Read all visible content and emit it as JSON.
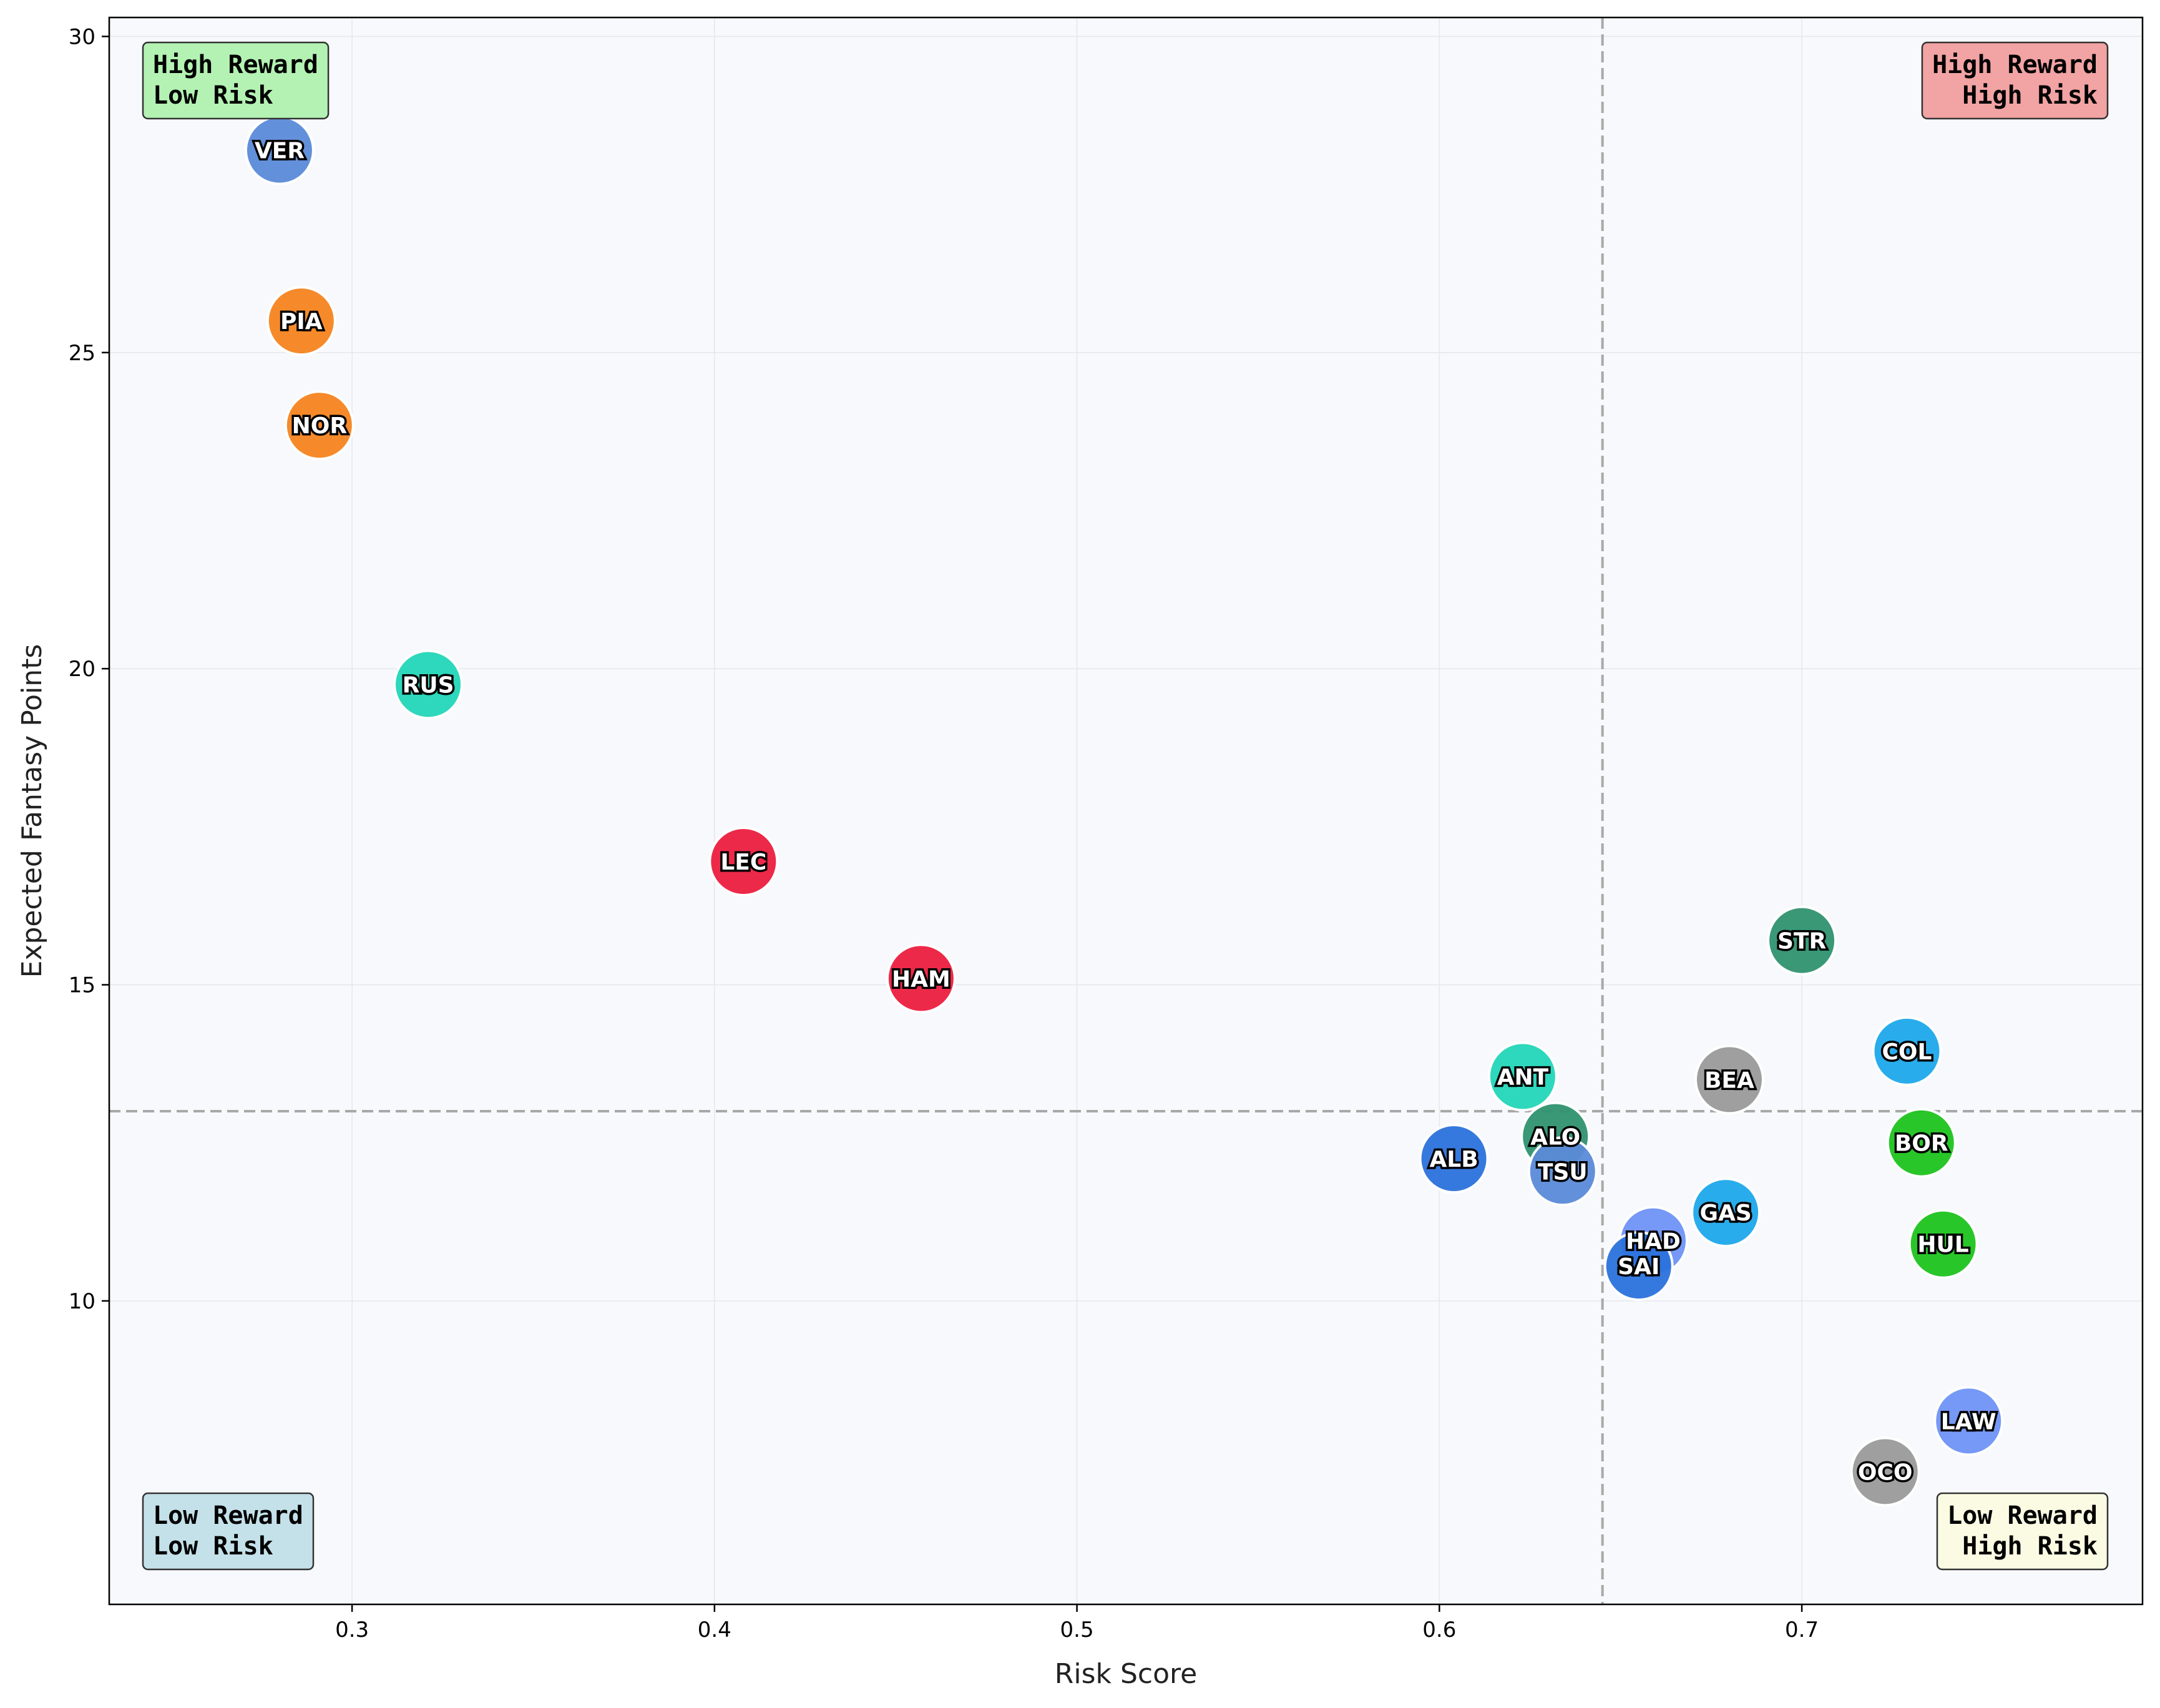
{
  "chart_data": {
    "type": "scatter",
    "xlabel": "Risk Score",
    "ylabel": "Expected Fantasy Points",
    "xlim": [
      0.233,
      0.794
    ],
    "ylim": [
      5.2,
      30.3
    ],
    "xticks": [
      0.3,
      0.4,
      0.5,
      0.6,
      0.7
    ],
    "yticks": [
      10,
      15,
      20,
      25,
      30
    ],
    "grid": true,
    "reference_lines": {
      "x": 0.645,
      "y": 13.0
    },
    "quadrants": [
      {
        "lines": [
          "High Reward",
          "Low Risk"
        ],
        "position": "top-left",
        "color": "#b3f2b3"
      },
      {
        "lines": [
          "High Reward",
          "High Risk"
        ],
        "position": "top-right",
        "color": "#f2a3a3"
      },
      {
        "lines": [
          "Low Reward",
          "Low Risk"
        ],
        "position": "bottom-left",
        "color": "#c4e1ea"
      },
      {
        "lines": [
          "Low Reward",
          "High Risk"
        ],
        "position": "bottom-right",
        "color": "#fbfbe3"
      }
    ],
    "points": [
      {
        "label": "VER",
        "x": 0.28,
        "y": 28.2,
        "color": "#5b8ad8"
      },
      {
        "label": "PIA",
        "x": 0.286,
        "y": 25.5,
        "color": "#f5841f"
      },
      {
        "label": "NOR",
        "x": 0.291,
        "y": 23.85,
        "color": "#f5841f"
      },
      {
        "label": "RUS",
        "x": 0.321,
        "y": 19.75,
        "color": "#22d6b8"
      },
      {
        "label": "LEC",
        "x": 0.408,
        "y": 16.95,
        "color": "#ec1e3f"
      },
      {
        "label": "HAM",
        "x": 0.457,
        "y": 15.1,
        "color": "#ec1e3f"
      },
      {
        "label": "ANT",
        "x": 0.623,
        "y": 13.55,
        "color": "#22d6b8"
      },
      {
        "label": "ALB",
        "x": 0.604,
        "y": 12.25,
        "color": "#2b72dc"
      },
      {
        "label": "ALO",
        "x": 0.632,
        "y": 12.6,
        "color": "#2f9270"
      },
      {
        "label": "TSU",
        "x": 0.634,
        "y": 12.05,
        "color": "#5b8ad8"
      },
      {
        "label": "STR",
        "x": 0.7,
        "y": 15.7,
        "color": "#2f9270"
      },
      {
        "label": "BEA",
        "x": 0.68,
        "y": 13.5,
        "color": "#9a9a9a"
      },
      {
        "label": "COL",
        "x": 0.729,
        "y": 13.95,
        "color": "#1ea8eb"
      },
      {
        "label": "BOR",
        "x": 0.733,
        "y": 12.5,
        "color": "#1ec31e"
      },
      {
        "label": "GAS",
        "x": 0.679,
        "y": 11.4,
        "color": "#1ea8eb"
      },
      {
        "label": "HAD",
        "x": 0.659,
        "y": 10.95,
        "color": "#6f92f5"
      },
      {
        "label": "SAI",
        "x": 0.655,
        "y": 10.55,
        "color": "#2b72dc"
      },
      {
        "label": "HUL",
        "x": 0.739,
        "y": 10.9,
        "color": "#1ec31e"
      },
      {
        "label": "LAW",
        "x": 0.746,
        "y": 8.1,
        "color": "#6f92f5"
      },
      {
        "label": "OCO",
        "x": 0.723,
        "y": 7.3,
        "color": "#9a9a9a"
      }
    ]
  }
}
